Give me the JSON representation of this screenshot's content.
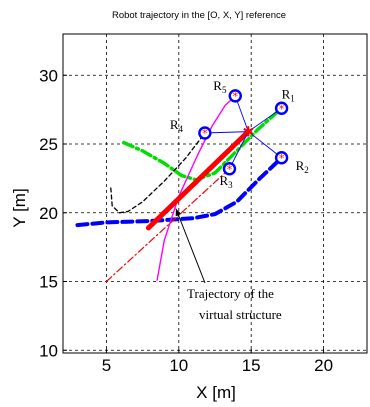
{
  "chart_data": {
    "type": "line",
    "title": "Robot trajectory in the [O, X, Y] reference",
    "xlabel": "X [m]",
    "ylabel": "Y [m]",
    "xlim": [
      2,
      23
    ],
    "ylim": [
      9.8,
      33
    ],
    "xticks": [
      5,
      10,
      15,
      20
    ],
    "yticks": [
      10,
      15,
      20,
      25,
      30
    ],
    "grid": true,
    "annotation": {
      "lines": [
        "Trajectory of the",
        "virtual structure"
      ],
      "arrow_to": [
        9.8,
        20.3
      ]
    },
    "robots": [
      {
        "label": "R",
        "sub": "1",
        "x": 17.1,
        "y": 27.6
      },
      {
        "label": "R",
        "sub": "2",
        "x": 17.1,
        "y": 24.0
      },
      {
        "label": "R",
        "sub": "3",
        "x": 13.5,
        "y": 23.2
      },
      {
        "label": "R",
        "sub": "4",
        "x": 11.8,
        "y": 25.8
      },
      {
        "label": "R",
        "sub": "5",
        "x": 13.9,
        "y": 28.5
      }
    ],
    "virtual_center": {
      "x": 14.8,
      "y": 25.9
    },
    "series": [
      {
        "color": "#0000ff",
        "style": "dashed-thick",
        "x": [
          3,
          5,
          8,
          11,
          12.5,
          14,
          15.5,
          17.1
        ],
        "y": [
          19.1,
          19.3,
          19.4,
          19.6,
          19.9,
          20.8,
          22.4,
          24.0
        ]
      },
      {
        "color": "#00dd00",
        "style": "dashdot-thick",
        "x": [
          6.2,
          7.5,
          9,
          10.2,
          11.2,
          12.5,
          14,
          15.5,
          17.1
        ],
        "y": [
          25.1,
          24.5,
          23.6,
          22.7,
          22.4,
          22.9,
          24.5,
          26.1,
          27.6
        ]
      },
      {
        "color": "#000000",
        "style": "dashed",
        "x": [
          5.3,
          5.4,
          5.9,
          6.5,
          7.5,
          9,
          10.5,
          11.8
        ],
        "y": [
          21.8,
          20.5,
          20.0,
          20.1,
          20.8,
          22.3,
          24.0,
          25.8
        ]
      },
      {
        "color": "#ff00ff",
        "style": "solid",
        "x": [
          8.5,
          9.0,
          10.0,
          11.3,
          12.3,
          13.2,
          13.9
        ],
        "y": [
          15.1,
          18.0,
          21.2,
          24.2,
          26.3,
          27.8,
          28.5
        ]
      },
      {
        "color": "#ff0000",
        "style": "dashdot",
        "x": [
          5.0,
          13.5
        ],
        "y": [
          15.0,
          23.2
        ]
      },
      {
        "color": "#ff0000",
        "style": "solid-thick",
        "x": [
          7.9,
          14.8
        ],
        "y": [
          18.9,
          25.9
        ]
      }
    ]
  }
}
